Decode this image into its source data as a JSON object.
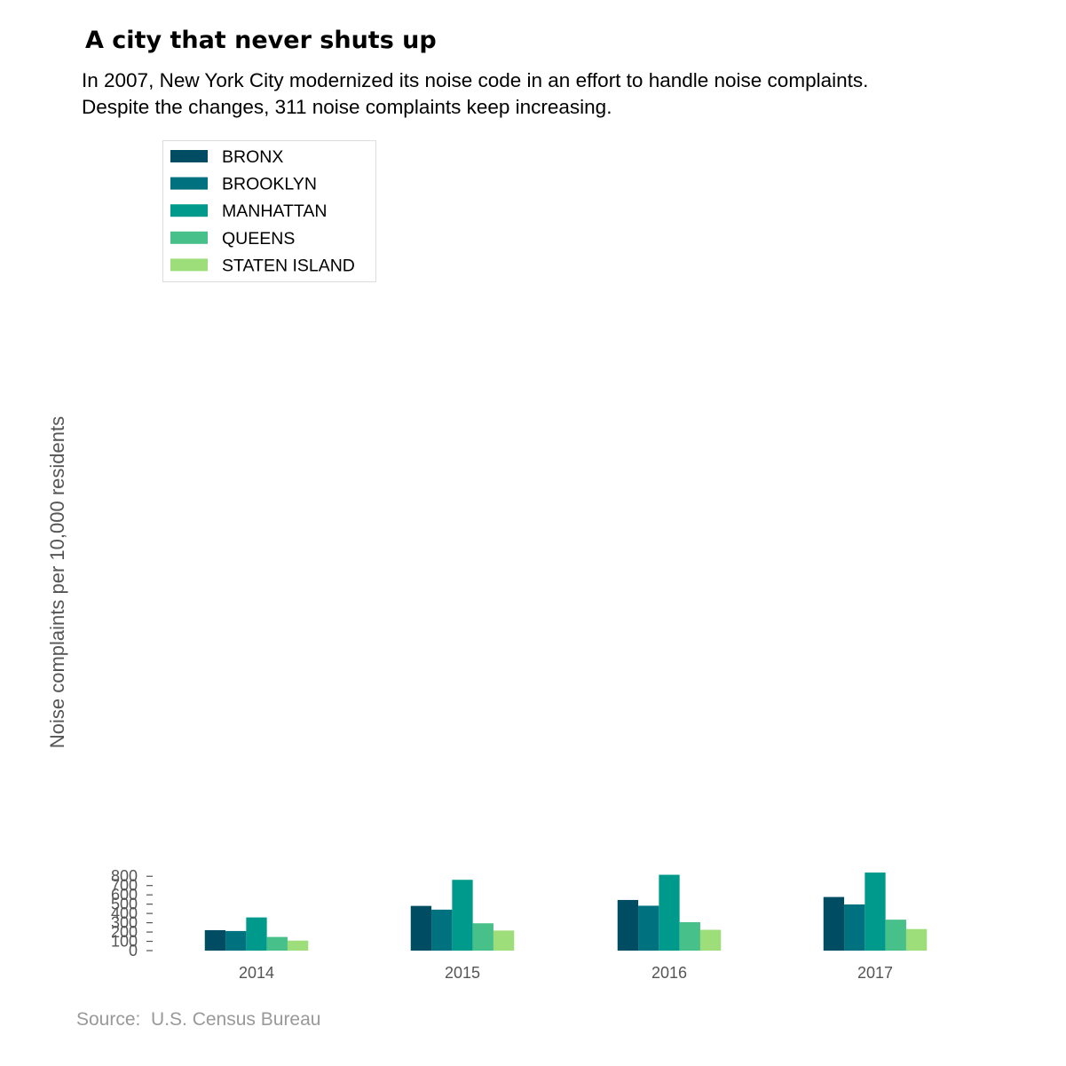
{
  "title": "A city that never shuts up",
  "subtitle": [
    "In 2007, New York City modernized its noise code in an effort to handle noise complaints.",
    "Despite the changes, 311 noise complaints keep increasing."
  ],
  "source": "Source:  U.S. Census Bureau",
  "chart_data": {
    "type": "bar",
    "title": "A city that never shuts up",
    "xlabel": "",
    "ylabel": "Noise complaints per 10,000 residents",
    "ylim": [
      0,
      840
    ],
    "yticks": [
      0,
      100,
      200,
      300,
      400,
      500,
      600,
      700,
      800
    ],
    "categories": [
      "2014",
      "2015",
      "2016",
      "2017"
    ],
    "grid": false,
    "legend_position": "top-left",
    "series": [
      {
        "name": "BRONX",
        "color": "#004c63",
        "values": [
          220,
          481,
          545,
          577
        ]
      },
      {
        "name": "BROOKLYN",
        "color": "#00727f",
        "values": [
          211,
          441,
          483,
          497
        ]
      },
      {
        "name": "MANHATTAN",
        "color": "#009a8c",
        "values": [
          357,
          762,
          816,
          840
        ]
      },
      {
        "name": "QUEENS",
        "color": "#48c089",
        "values": [
          147,
          294,
          306,
          333
        ]
      },
      {
        "name": "STATEN ISLAND",
        "color": "#9ede7a",
        "values": [
          108,
          216,
          224,
          232
        ]
      }
    ]
  }
}
